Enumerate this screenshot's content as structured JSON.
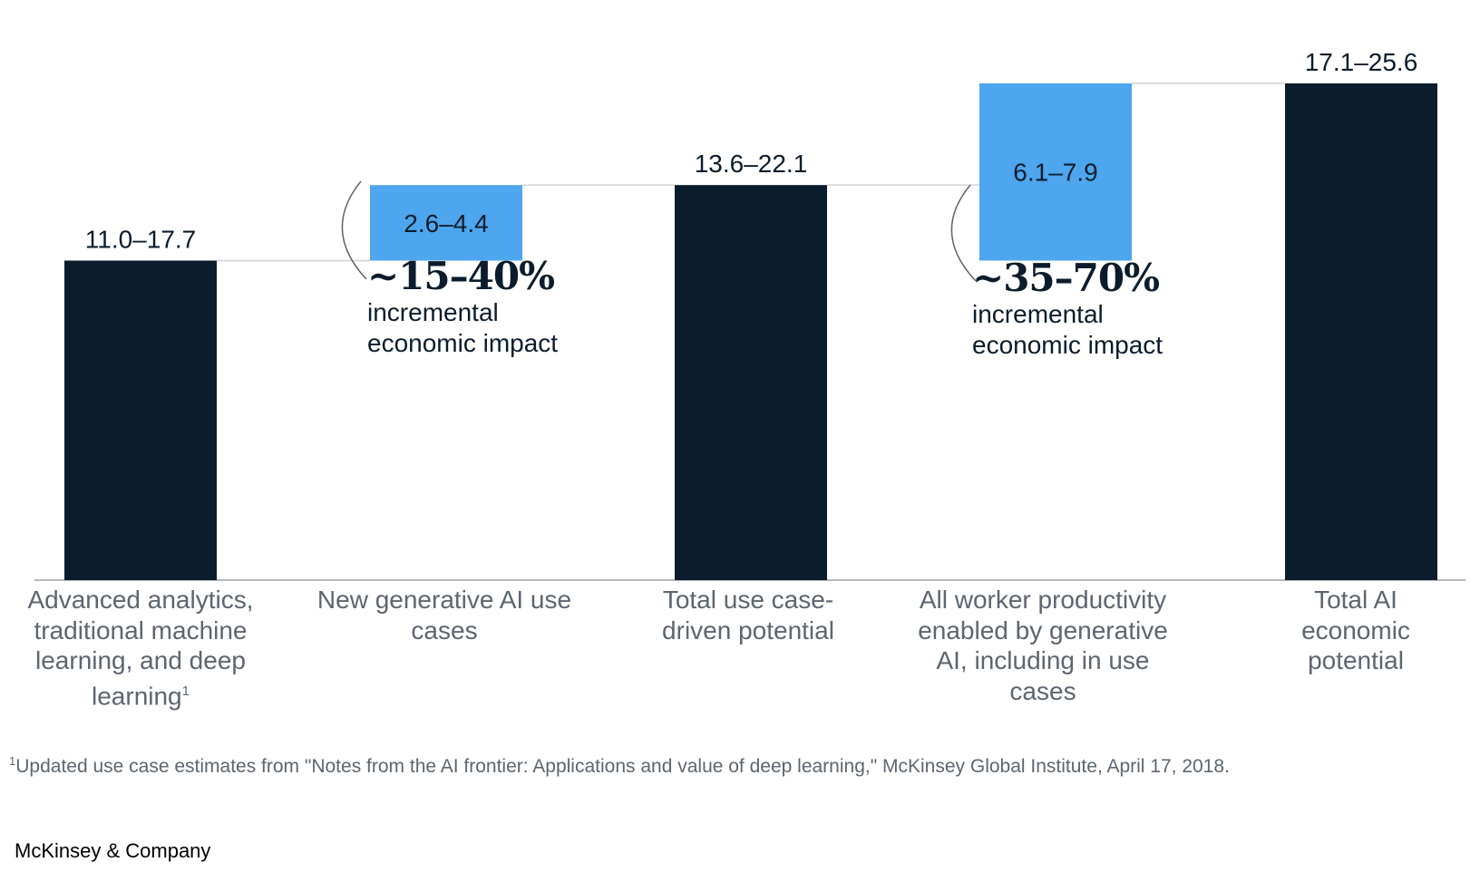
{
  "chart_data": {
    "type": "bar",
    "subtype": "waterfall",
    "categories": [
      "Advanced analytics, traditional machine learning, and deep learning",
      "New generative AI use cases",
      "Total use case-driven potential",
      "All worker productivity enabled by generative AI, including in use cases",
      "Total AI economic potential"
    ],
    "category_superscripts": [
      "1",
      "",
      "",
      "",
      ""
    ],
    "bars": [
      {
        "label": "11.0–17.7",
        "kind": "total",
        "start": 0,
        "end": 11.0
      },
      {
        "label": "2.6–4.4",
        "kind": "increment",
        "start": 11.0,
        "end": 13.6
      },
      {
        "label": "13.6–22.1",
        "kind": "total",
        "start": 0,
        "end": 13.6
      },
      {
        "label": "6.1–7.9",
        "kind": "increment",
        "start": 11.0,
        "end": 17.1
      },
      {
        "label": "17.1–25.6",
        "kind": "total",
        "start": 0,
        "end": 17.1
      }
    ],
    "ylim": [
      0,
      17.1
    ],
    "grid": false,
    "legend": "none",
    "colors": {
      "total": "#0b1c2c",
      "increment": "#4da6ee",
      "axis": "#9aa0a6",
      "connector": "#d0d4d8"
    },
    "annotations": [
      {
        "percent": "~15–40%",
        "text": "incremental economic impact"
      },
      {
        "percent": "~35–70%",
        "text": "incremental economic impact"
      }
    ]
  },
  "footnote": {
    "marker": "1",
    "text": "Updated use case estimates from \"Notes from the AI frontier: Applications and value of deep learning,\" McKinsey Global Institute, April 17, 2018."
  },
  "brand": "McKinsey & Company"
}
